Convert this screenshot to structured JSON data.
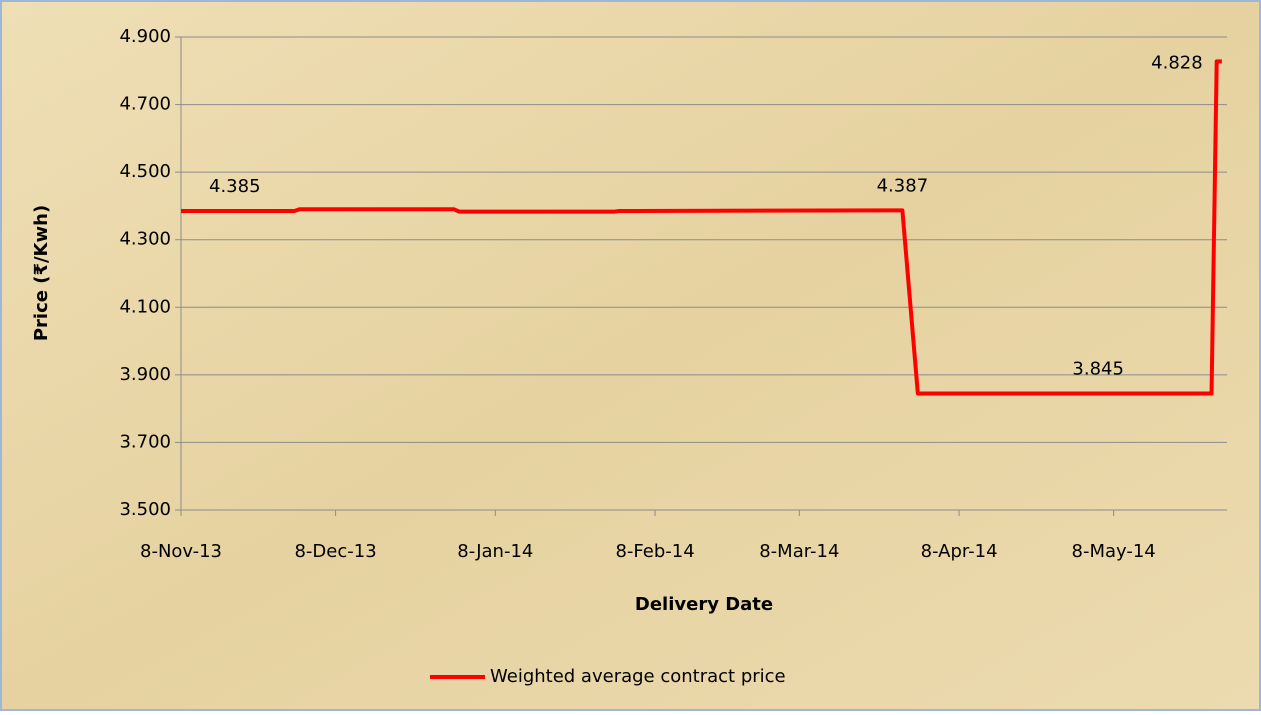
{
  "chart_data": {
    "type": "line",
    "y_axis_label": "Price (₹/Kwh)",
    "x_axis_label": "Delivery Date",
    "x": [
      "2013-11-08",
      "2013-11-30",
      "2013-12-01",
      "2013-12-31",
      "2014-01-01",
      "2014-01-31",
      "2014-02-01",
      "2014-03-28",
      "2014-03-31",
      "2014-05-05",
      "2014-05-27",
      "2014-05-28",
      "2014-05-29"
    ],
    "series": [
      {
        "name": "Weighted average contract price",
        "color": "#ff0000",
        "values": [
          4.385,
          4.385,
          4.39,
          4.39,
          4.383,
          4.383,
          4.385,
          4.387,
          3.845,
          3.845,
          3.845,
          4.828,
          4.828
        ],
        "value_labels": [
          "4.385",
          null,
          null,
          null,
          null,
          null,
          null,
          "4.387",
          null,
          "3.845",
          null,
          "4.828",
          null
        ]
      }
    ],
    "xlim": [
      "2013-11-08",
      "2014-05-30"
    ],
    "xticks": [
      {
        "value": "2013-11-08",
        "label": "8-Nov-13"
      },
      {
        "value": "2013-12-08",
        "label": "8-Dec-13"
      },
      {
        "value": "2014-01-08",
        "label": "8-Jan-14"
      },
      {
        "value": "2014-02-08",
        "label": "8-Feb-14"
      },
      {
        "value": "2014-03-08",
        "label": "8-Mar-14"
      },
      {
        "value": "2014-04-08",
        "label": "8-Apr-14"
      },
      {
        "value": "2014-05-08",
        "label": "8-May-14"
      }
    ],
    "ylim": [
      3.5,
      4.9
    ],
    "yticks": [
      {
        "value": 3.5,
        "label": "3.500"
      },
      {
        "value": 3.7,
        "label": "3.700"
      },
      {
        "value": 3.9,
        "label": "3.900"
      },
      {
        "value": 4.1,
        "label": "4.100"
      },
      {
        "value": 4.3,
        "label": "4.300"
      },
      {
        "value": 4.5,
        "label": "4.500"
      },
      {
        "value": 4.7,
        "label": "4.700"
      },
      {
        "value": 4.9,
        "label": "4.900"
      }
    ],
    "grid": true,
    "legend": "bottom"
  }
}
